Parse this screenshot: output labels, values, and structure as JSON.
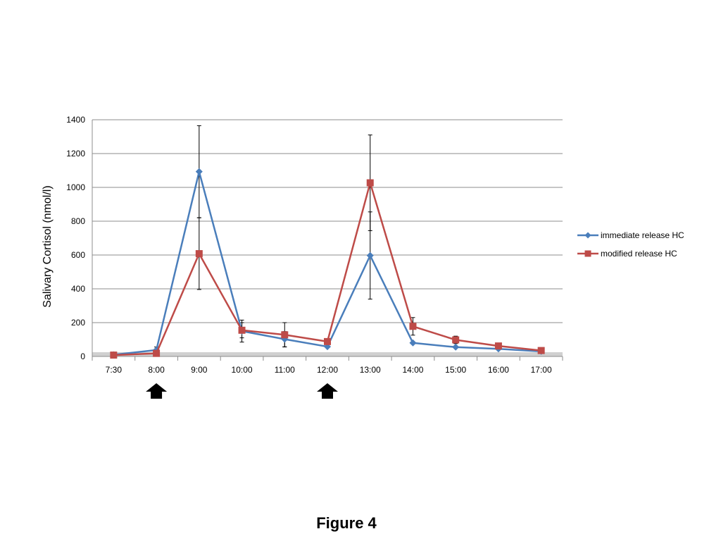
{
  "caption": "Figure 4",
  "chart_data": {
    "type": "line",
    "title": "",
    "xlabel": "",
    "ylabel": "Salivary Cortisol (nmol/l)",
    "categories": [
      "7:30",
      "8:00",
      "9:00",
      "10:00",
      "11:00",
      "12:00",
      "13:00",
      "14:00",
      "15:00",
      "16:00",
      "17:00"
    ],
    "ylim": [
      0,
      1400
    ],
    "yticks": [
      0,
      200,
      400,
      600,
      800,
      1000,
      1200,
      1400
    ],
    "grid": "horizontal",
    "legend": "right",
    "series": [
      {
        "name": "immediate release HC",
        "color": "#4a7ebb",
        "marker": "diamond",
        "values": [
          10,
          38,
          1093,
          150,
          102,
          58,
          597,
          80,
          55,
          45,
          30
        ],
        "errors": [
          0,
          18,
          272,
          65,
          45,
          0,
          258,
          0,
          0,
          0,
          0
        ]
      },
      {
        "name": "modified release HC",
        "color": "#be4b48",
        "marker": "square",
        "values": [
          8,
          18,
          608,
          155,
          128,
          88,
          1027,
          178,
          98,
          62,
          35
        ],
        "errors": [
          0,
          0,
          212,
          45,
          72,
          0,
          283,
          52,
          22,
          0,
          0
        ]
      }
    ],
    "arrows_at": [
      "8:00",
      "12:00"
    ]
  }
}
